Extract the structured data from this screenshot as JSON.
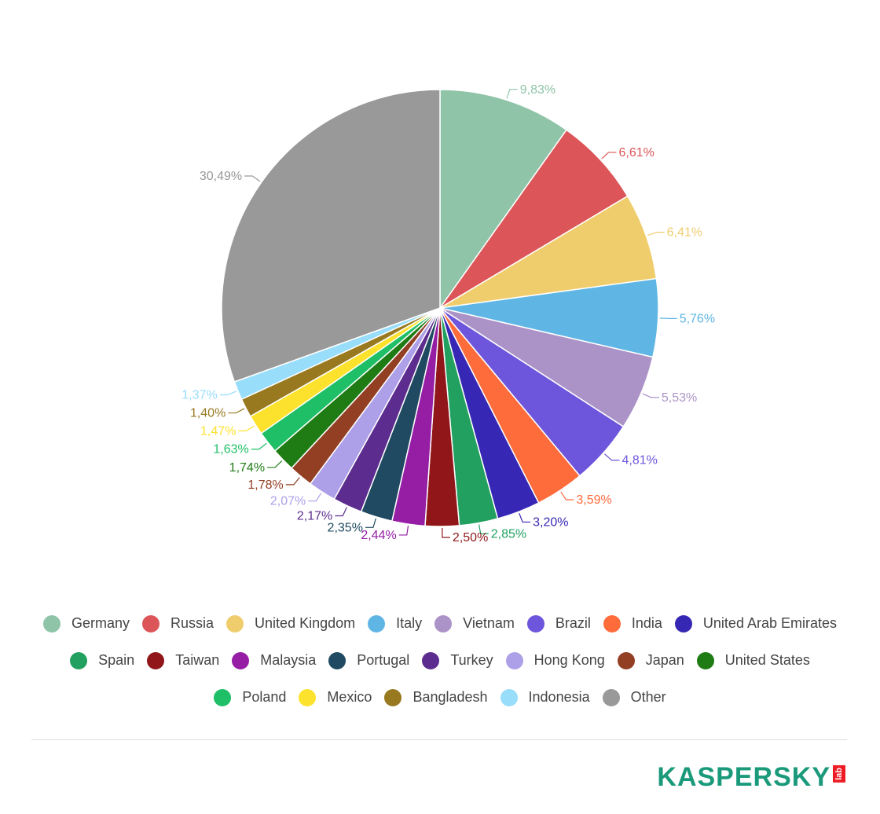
{
  "chart_data": {
    "type": "pie",
    "title": "",
    "slices": [
      {
        "name": "Germany",
        "value": 9.83,
        "label": "9,83%",
        "color": "#8fc4a8"
      },
      {
        "name": "Russia",
        "value": 6.61,
        "label": "6,61%",
        "color": "#dc5558"
      },
      {
        "name": "United Kingdom",
        "value": 6.41,
        "label": "6,41%",
        "color": "#efcd6c"
      },
      {
        "name": "Italy",
        "value": 5.76,
        "label": "5,76%",
        "color": "#5fb6e4"
      },
      {
        "name": "Vietnam",
        "value": 5.53,
        "label": "5,53%",
        "color": "#ab93c8"
      },
      {
        "name": "Brazil",
        "value": 4.81,
        "label": "4,81%",
        "color": "#6e56dc"
      },
      {
        "name": "India",
        "value": 3.59,
        "label": "3,59%",
        "color": "#fe6c3c"
      },
      {
        "name": "United Arab Emirates",
        "value": 3.2,
        "label": "3,20%",
        "color": "#3627b5"
      },
      {
        "name": "Spain",
        "value": 2.85,
        "label": "2,85%",
        "color": "#22a060"
      },
      {
        "name": "Taiwan",
        "value": 2.5,
        "label": "2,50%",
        "color": "#901619"
      },
      {
        "name": "Malaysia",
        "value": 2.44,
        "label": "2,44%",
        "color": "#951ea5"
      },
      {
        "name": "Portugal",
        "value": 2.35,
        "label": "2,35%",
        "color": "#1f4a61"
      },
      {
        "name": "Turkey",
        "value": 2.17,
        "label": "2,17%",
        "color": "#5c2d8e"
      },
      {
        "name": "Hong Kong",
        "value": 2.07,
        "label": "2,07%",
        "color": "#ad9fe8"
      },
      {
        "name": "Japan",
        "value": 1.78,
        "label": "1,78%",
        "color": "#923f24"
      },
      {
        "name": "United States",
        "value": 1.74,
        "label": "1,74%",
        "color": "#1f7b14"
      },
      {
        "name": "Poland",
        "value": 1.63,
        "label": "1,63%",
        "color": "#1fbf67"
      },
      {
        "name": "Mexico",
        "value": 1.47,
        "label": "1,47%",
        "color": "#fde22d"
      },
      {
        "name": "Bangladesh",
        "value": 1.4,
        "label": "1,40%",
        "color": "#987920"
      },
      {
        "name": "Indonesia",
        "value": 1.37,
        "label": "1,37%",
        "color": "#98ddfa"
      },
      {
        "name": "Other",
        "value": 30.49,
        "label": "30,49%",
        "color": "#999999"
      }
    ],
    "legend_placement": "bottom"
  },
  "legend": {
    "rows": [
      [
        "Germany",
        "Russia",
        "United Kingdom",
        "Italy",
        "Vietnam",
        "Brazil",
        "India",
        "United Arab Emirates"
      ],
      [
        "Spain",
        "Taiwan",
        "Malaysia",
        "Portugal",
        "Turkey",
        "Hong Kong",
        "Japan",
        "United States"
      ],
      [
        "Poland",
        "Mexico",
        "Bangladesh",
        "Indonesia",
        "Other"
      ]
    ]
  },
  "brand": {
    "name": "KASPERSKY",
    "sub": "lab",
    "color": "#1b9a7b",
    "accent": "#ed1c24"
  }
}
